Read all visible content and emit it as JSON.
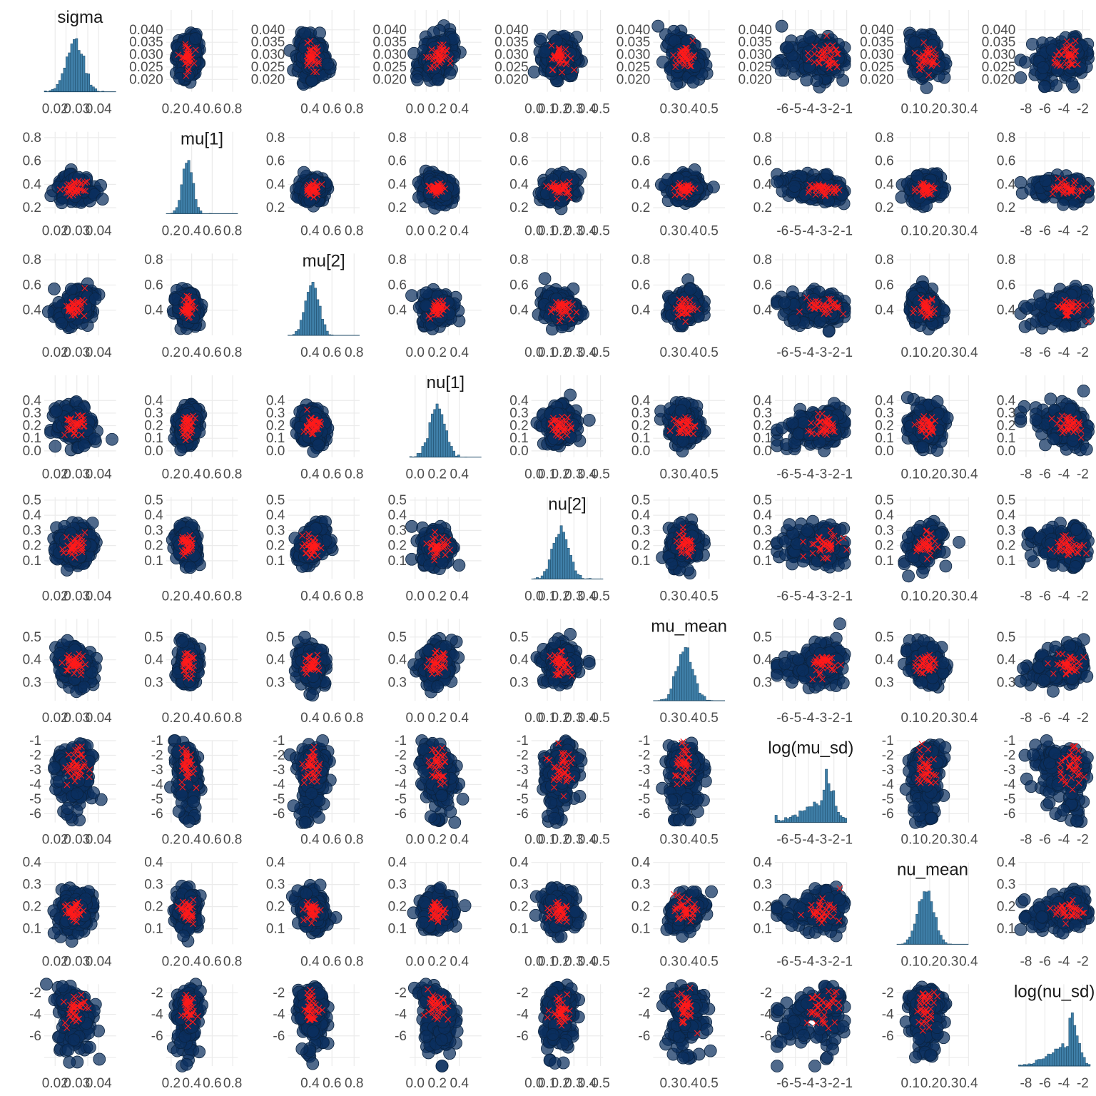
{
  "chart_data": {
    "type": "scatter",
    "layout": "pairs-matrix",
    "variables": [
      {
        "name": "sigma",
        "range": [
          0.015,
          0.048
        ],
        "ticks": [
          0.02,
          0.025,
          0.03,
          0.035,
          0.04
        ],
        "tick_labels_y": [
          "0.020",
          "0.025",
          "0.030",
          "0.035",
          "0.040"
        ],
        "tick_labels_x": [
          "0.02",
          "0.03",
          "0.04"
        ],
        "center": 0.029,
        "spread": 0.004
      },
      {
        "name": "mu[1]",
        "range": [
          0.15,
          0.85
        ],
        "ticks": [
          0.2,
          0.4,
          0.6,
          0.8
        ],
        "tick_labels_y": [
          "0.2",
          "0.4",
          "0.6",
          "0.8"
        ],
        "tick_labels_x": [
          "0.2",
          "0.4",
          "0.6",
          "0.8"
        ],
        "center": 0.36,
        "spread": 0.05
      },
      {
        "name": "mu[2]",
        "range": [
          0.2,
          0.85
        ],
        "ticks": [
          0.4,
          0.6,
          0.8
        ],
        "tick_labels_y": [
          "0.4",
          "0.6",
          "0.8"
        ],
        "tick_labels_x": [
          "0.4",
          "0.6",
          "0.8"
        ],
        "center": 0.42,
        "spread": 0.06
      },
      {
        "name": "nu[1]",
        "range": [
          -0.05,
          0.6
        ],
        "ticks": [
          0.0,
          0.1,
          0.2,
          0.3,
          0.4
        ],
        "tick_labels_y": [
          "0.0",
          "0.1",
          "0.2",
          "0.3",
          "0.4"
        ],
        "tick_labels_x": [
          "0.0",
          "0.2",
          "0.4"
        ],
        "center": 0.2,
        "spread": 0.07
      },
      {
        "name": "nu[2]",
        "range": [
          -0.02,
          0.52
        ],
        "ticks": [
          0.1,
          0.2,
          0.3,
          0.4,
          0.5
        ],
        "tick_labels_y": [
          "0.1",
          "0.2",
          "0.3",
          "0.4",
          "0.5"
        ],
        "tick_labels_x": [
          "0.0",
          "0.1",
          "0.2",
          "0.3",
          "0.4",
          "0.5"
        ],
        "center": 0.2,
        "spread": 0.06
      },
      {
        "name": "mu_mean",
        "range": [
          0.22,
          0.58
        ],
        "ticks": [
          0.3,
          0.4,
          0.5
        ],
        "tick_labels_y": [
          "0.3",
          "0.4",
          "0.5"
        ],
        "tick_labels_x": [
          "0.3",
          "0.4",
          "0.5"
        ],
        "center": 0.38,
        "spread": 0.04
      },
      {
        "name": "log(mu_sd)",
        "range": [
          -6.6,
          -1.0
        ],
        "ticks": [
          -6,
          -5,
          -4,
          -3,
          -2,
          -1
        ],
        "tick_labels_y": [
          "-6",
          "-5",
          "-4",
          "-3",
          "-2",
          "-1"
        ],
        "tick_labels_x": [
          "-6",
          "-5",
          "-4",
          "-3",
          "-2",
          "-1"
        ],
        "center": -2.8,
        "spread": 1.1
      },
      {
        "name": "nu_mean",
        "range": [
          0.03,
          0.4
        ],
        "ticks": [
          0.1,
          0.2,
          0.3,
          0.4
        ],
        "tick_labels_y": [
          "0.1",
          "0.2",
          "0.3",
          "0.4"
        ],
        "tick_labels_x": [
          "0.1",
          "0.2",
          "0.3",
          "0.4"
        ],
        "center": 0.18,
        "spread": 0.04
      },
      {
        "name": "log(nu_sd)",
        "range": [
          -8.8,
          -1.2
        ],
        "ticks": [
          -8,
          -6,
          -4,
          -2
        ],
        "tick_labels_y": [
          "-6",
          "-4",
          "-2"
        ],
        "tick_labels_x": [
          "-8",
          "-6",
          "-4",
          "-2"
        ],
        "center": -3.4,
        "spread": 1.3
      }
    ],
    "draws_per_panel": 220,
    "divergent_per_panel": 40,
    "draw_color": "#0b2f5e",
    "divergent_color": "#ff0000",
    "histogram_color": "#3f7fa8",
    "grid": true
  }
}
